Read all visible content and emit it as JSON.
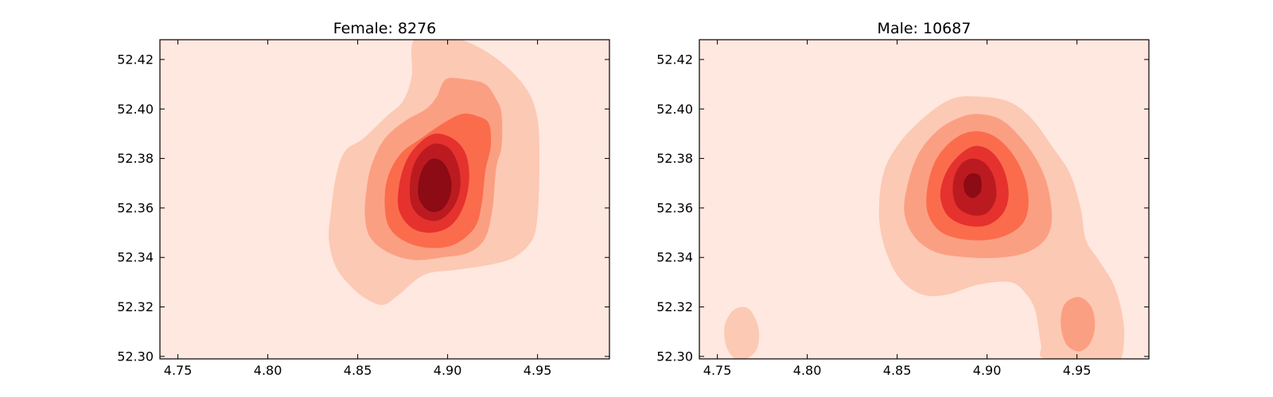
{
  "colors": {
    "levels": [
      "#fee8df",
      "#fcc9b4",
      "#fb9f82",
      "#fb6c4c",
      "#e5322e",
      "#bb1b20",
      "#8c0b15"
    ]
  },
  "chart_data": [
    {
      "type": "contourf",
      "title": "Female: 8276",
      "xlim": [
        4.74,
        4.99
      ],
      "ylim": [
        52.299,
        52.428
      ],
      "xticks": [
        4.75,
        4.8,
        4.85,
        4.9,
        4.95
      ],
      "yticks": [
        52.3,
        52.32,
        52.34,
        52.36,
        52.38,
        52.4,
        52.42
      ],
      "xtick_labels": [
        "4.75",
        "4.80",
        "4.85",
        "4.90",
        "4.95"
      ],
      "ytick_labels": [
        "52.30",
        "52.32",
        "52.34",
        "52.36",
        "52.38",
        "52.40",
        "52.42"
      ],
      "grid": false,
      "density_peaks": [
        {
          "x": 4.893,
          "y": 52.37,
          "peak_level": 6
        }
      ]
    },
    {
      "type": "contourf",
      "title": "Male: 10687",
      "xlim": [
        4.74,
        4.99
      ],
      "ylim": [
        52.299,
        52.428
      ],
      "xticks": [
        4.75,
        4.8,
        4.85,
        4.9,
        4.95
      ],
      "yticks": [
        52.3,
        52.32,
        52.34,
        52.36,
        52.38,
        52.4,
        52.42
      ],
      "xtick_labels": [
        "4.75",
        "4.80",
        "4.85",
        "4.90",
        "4.95"
      ],
      "ytick_labels": [
        "52.30",
        "52.32",
        "52.34",
        "52.36",
        "52.38",
        "52.40",
        "52.42"
      ],
      "grid": false,
      "density_peaks": [
        {
          "x": 4.892,
          "y": 52.37,
          "peak_level": 6
        },
        {
          "x": 4.95,
          "y": 52.315,
          "peak_level": 2
        },
        {
          "x": 4.763,
          "y": 52.31,
          "peak_level": 1
        }
      ]
    }
  ]
}
